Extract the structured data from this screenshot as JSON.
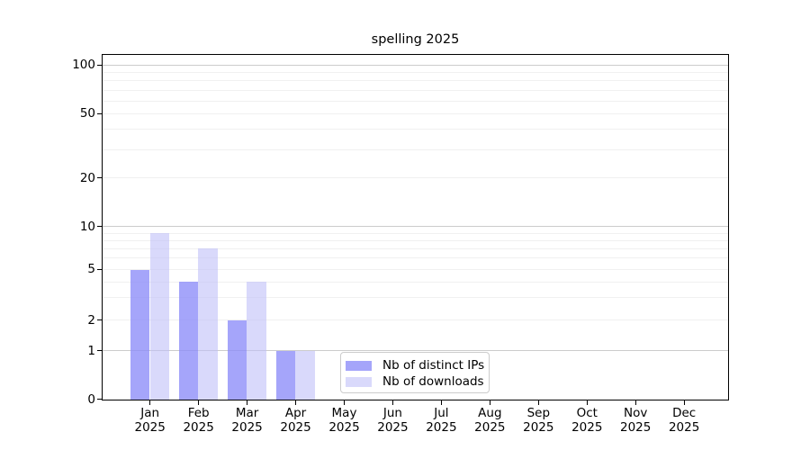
{
  "chart_data": {
    "type": "bar",
    "title": "spelling 2025",
    "categories": [
      "Jan",
      "Feb",
      "Mar",
      "Apr",
      "May",
      "Jun",
      "Jul",
      "Aug",
      "Sep",
      "Oct",
      "Nov",
      "Dec"
    ],
    "category_sublabel": "2025",
    "series": [
      {
        "name": "Nb of distinct IPs",
        "color": "rgba(140,140,248,0.78)",
        "values": [
          5,
          4,
          2,
          1,
          0,
          0,
          0,
          0,
          0,
          0,
          0,
          0
        ]
      },
      {
        "name": "Nb of downloads",
        "color": "rgba(190,190,248,0.58)",
        "values": [
          9,
          7,
          4,
          1,
          0,
          0,
          0,
          0,
          0,
          0,
          0,
          0
        ]
      }
    ],
    "yaxis": {
      "tick_labels": [
        "0",
        "1",
        "2",
        "5",
        "10",
        "20",
        "50",
        "100"
      ],
      "ticks": [
        0,
        1,
        2,
        5,
        10,
        20,
        50,
        100
      ],
      "minor_ticks": [
        3,
        4,
        6,
        7,
        8,
        9,
        30,
        40,
        60,
        70,
        80,
        90
      ],
      "scale_anchors": [
        [
          0,
          0
        ],
        [
          1,
          0.1418
        ],
        [
          2,
          0.2302
        ],
        [
          5,
          0.3777
        ],
        [
          10,
          0.5025
        ],
        [
          20,
          0.6437
        ],
        [
          50,
          0.8302
        ],
        [
          100,
          0.9714
        ]
      ],
      "emphasized_grid_values": [
        1,
        10,
        100
      ],
      "major_grid_color": "#cccccc",
      "minor_grid_color": "#f0f0f0",
      "ylim_top_fraction": 1.0
    },
    "xaxis": {
      "year_row": [
        "2025",
        "2025",
        "2025",
        "2025",
        "2025",
        "2025",
        "2025",
        "2025",
        "2025",
        "2025",
        "2025",
        "2025"
      ]
    },
    "grid": true,
    "legend_position": "bottom-center",
    "frame_color": "#000000",
    "background_color": "#ffffff"
  }
}
